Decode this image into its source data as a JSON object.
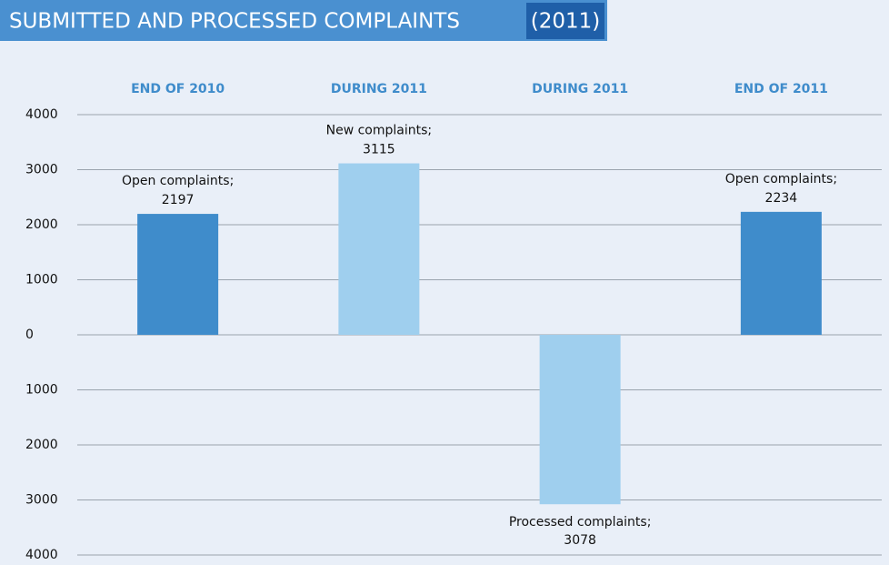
{
  "chart_data": {
    "type": "bar",
    "title": "SUBMITTED AND PROCESSED COMPLAINTS",
    "subtitle": "(2011)",
    "categories": [
      "END OF 2010",
      "DURING 2011",
      "DURING 2011",
      "END OF 2011"
    ],
    "values": [
      2197,
      3115,
      -3078,
      2234
    ],
    "value_labels": [
      "2197",
      "3115",
      "3078",
      "2234"
    ],
    "bar_labels": [
      "Open complaints;",
      "New complaints;",
      "Processed complaints;",
      "Open complaints;"
    ],
    "colors": [
      "#3f8ccb",
      "#9fcfee",
      "#9fcfee",
      "#3f8ccb"
    ],
    "ylim": [
      -4000,
      4000
    ],
    "yticks": [
      {
        "value": -4000,
        "label": "4000"
      },
      {
        "value": -3000,
        "label": "3000"
      },
      {
        "value": -2000,
        "label": "2000"
      },
      {
        "value": -1000,
        "label": "1000"
      },
      0,
      1000,
      2000,
      3000,
      4000
    ],
    "grid": true
  }
}
